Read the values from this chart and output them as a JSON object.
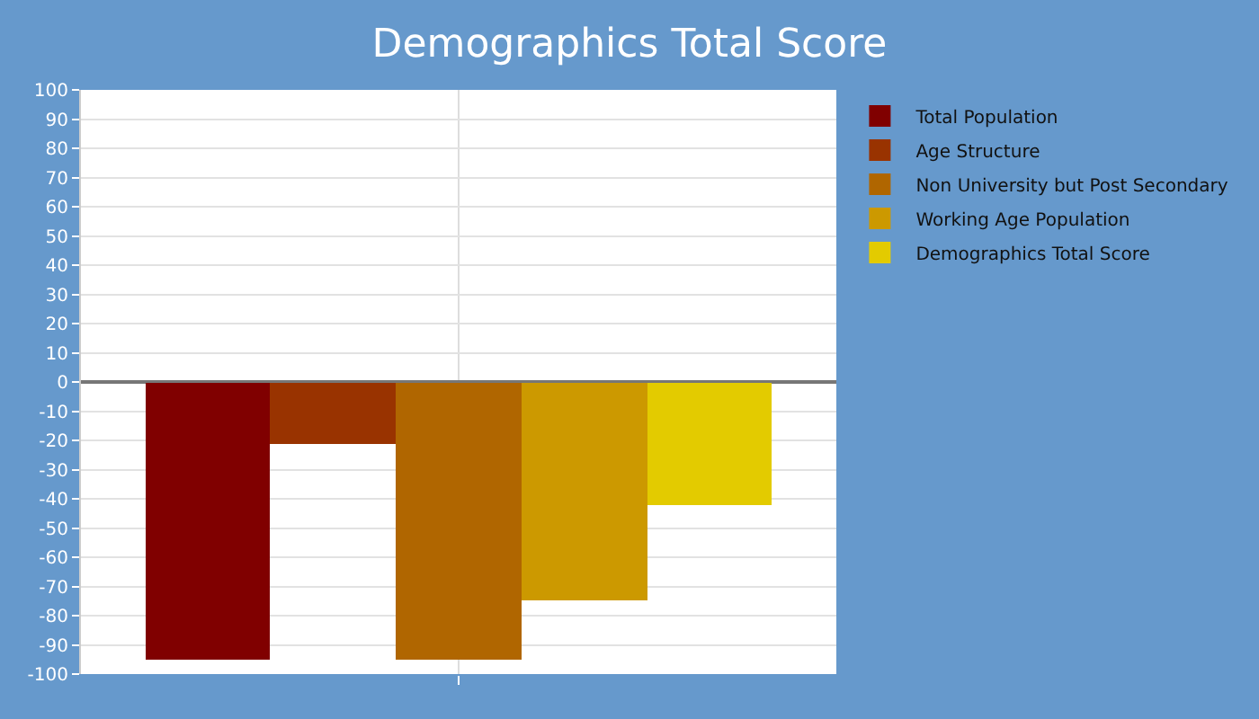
{
  "chart_data": {
    "type": "bar",
    "title": "Demographics Total Score",
    "categories": [
      null
    ],
    "series": [
      {
        "name": "Total Population",
        "color": "#800000",
        "values": [
          -95
        ]
      },
      {
        "name": "Age Structure",
        "color": "#993300",
        "values": [
          -21
        ]
      },
      {
        "name": "Non University but Post Secondary",
        "color": "#b06600",
        "values": [
          -95
        ]
      },
      {
        "name": "Working Age Population",
        "color": "#cc9900",
        "values": [
          -74.5
        ]
      },
      {
        "name": "Demographics Total Score",
        "color": "#e3cb00",
        "values": [
          -42
        ]
      }
    ],
    "ylim": [
      -100,
      100
    ],
    "yticks": [
      -100,
      -90,
      -80,
      -70,
      -60,
      -50,
      -40,
      -30,
      -20,
      -10,
      0,
      10,
      20,
      30,
      40,
      50,
      60,
      70,
      80,
      90,
      100
    ],
    "grid": true,
    "legend": "top right"
  }
}
